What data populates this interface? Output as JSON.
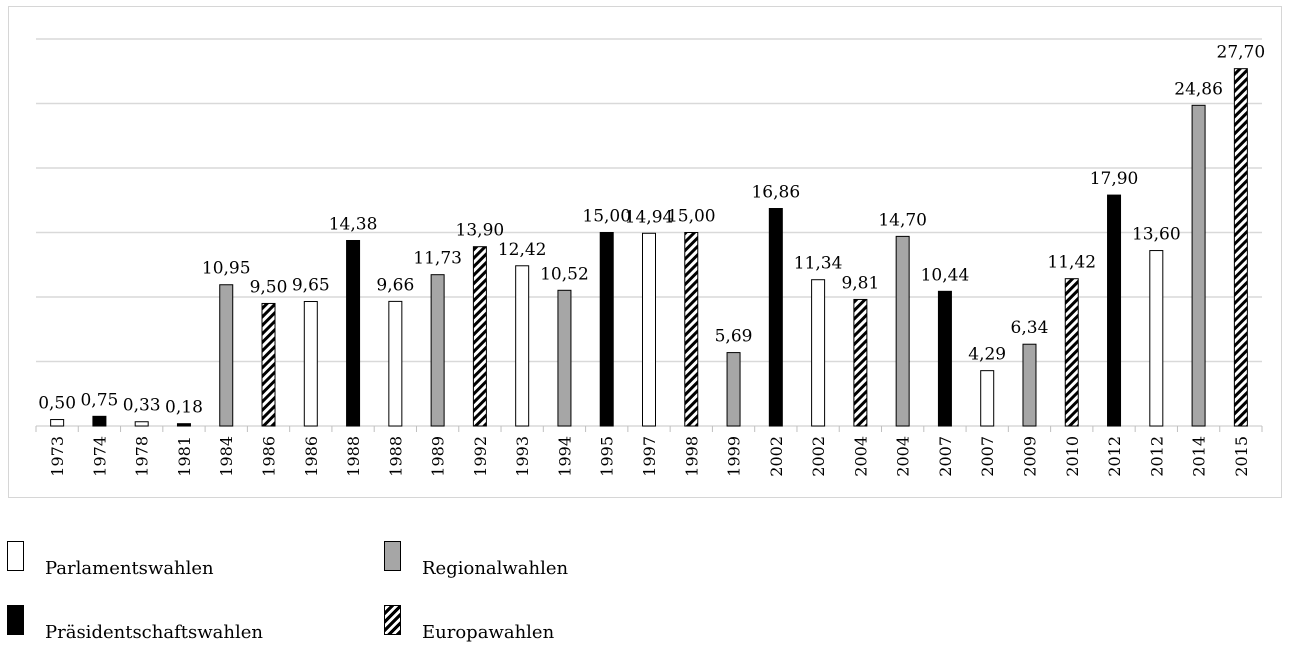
{
  "legend": {
    "parlament": "Parlamentswahlen",
    "regional": "Regionalwahlen",
    "praesident": "Präsidentschaftswahlen",
    "europa": "Europawahlen"
  },
  "colors": {
    "parlament": "#ffffff",
    "regional": "#a6a6a6",
    "praesident": "#000000",
    "europa": "hatched-black-white",
    "gridline": "#d9d9d9"
  },
  "chart_data": {
    "type": "bar",
    "grid": true,
    "ylim": [
      0,
      30
    ],
    "legend_position": "bottom",
    "categories": [
      "1973",
      "1974",
      "1978",
      "1981",
      "1984",
      "1986",
      "1986",
      "1988",
      "1988",
      "1989",
      "1992",
      "1993",
      "1994",
      "1995",
      "1997",
      "1998",
      "1999",
      "2002",
      "2002",
      "2004",
      "2004",
      "2007",
      "2007",
      "2009",
      "2010",
      "2012",
      "2012",
      "2014",
      "2015"
    ],
    "values": [
      0.5,
      0.75,
      0.33,
      0.18,
      10.95,
      9.5,
      9.65,
      14.38,
      9.66,
      11.73,
      13.9,
      12.42,
      10.52,
      15.0,
      14.94,
      15.0,
      5.69,
      16.86,
      11.34,
      9.81,
      14.7,
      10.44,
      4.29,
      6.34,
      11.42,
      17.9,
      13.6,
      24.86,
      27.7
    ],
    "labels": [
      "0,50",
      "0,75",
      "0,33",
      "0,18",
      "10,95",
      "9,50",
      "9,65",
      "14,38",
      "9,66",
      "11,73",
      "13,90",
      "12,42",
      "10,52",
      "15,00",
      "14,94",
      "15,00",
      "5,69",
      "16,86",
      "11,34",
      "9,81",
      "14,70",
      "10,44",
      "4,29",
      "6,34",
      "11,42",
      "17,90",
      "13,60",
      "24,86",
      "27,70"
    ],
    "election_types": [
      "parlament",
      "praesident",
      "parlament",
      "praesident",
      "regional",
      "europa",
      "parlament",
      "praesident",
      "parlament",
      "regional",
      "europa",
      "parlament",
      "regional",
      "praesident",
      "parlament",
      "europa",
      "regional",
      "praesident",
      "parlament",
      "europa",
      "regional",
      "praesident",
      "parlament",
      "regional",
      "europa",
      "praesident",
      "parlament",
      "regional",
      "europa"
    ]
  }
}
